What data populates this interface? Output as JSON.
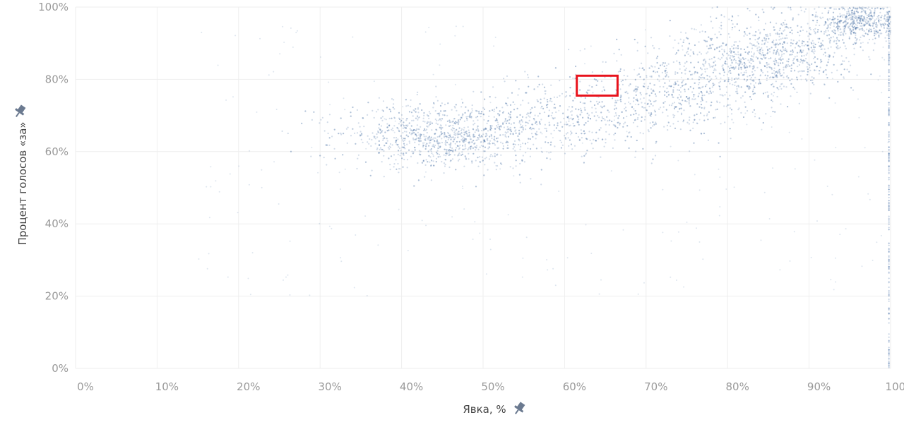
{
  "chart_data": {
    "type": "scatter",
    "title": "",
    "xlabel": "Явка, %",
    "ylabel": "Процент голосов «за»",
    "xlim": [
      0,
      100
    ],
    "ylim": [
      0,
      100
    ],
    "x_ticks": [
      "0%",
      "10%",
      "20%",
      "30%",
      "40%",
      "50%",
      "60%",
      "70%",
      "80%",
      "90%",
      "100%"
    ],
    "y_ticks": [
      "0%",
      "20%",
      "40%",
      "60%",
      "80%",
      "100%"
    ],
    "grid": true,
    "legend": "none",
    "point_color": "#4a74a8",
    "highlight_color": "#e8121c",
    "highlight_region": {
      "x": [
        61.5,
        66.5
      ],
      "y": [
        75.5,
        81
      ]
    },
    "pin_icon": "pin-icon",
    "clusters": [
      {
        "x": 45,
        "y": 64,
        "sx": 6.5,
        "sy": 4.5,
        "weight": 0.3
      },
      {
        "x": 60,
        "y": 70,
        "sx": 6,
        "sy": 5,
        "weight": 0.12
      },
      {
        "x": 72,
        "y": 76,
        "sx": 4.5,
        "sy": 6,
        "weight": 0.12
      },
      {
        "x": 81,
        "y": 83,
        "sx": 4,
        "sy": 6,
        "weight": 0.16
      },
      {
        "x": 88,
        "y": 88,
        "sx": 4,
        "sy": 5,
        "weight": 0.14
      },
      {
        "x": 96,
        "y": 96,
        "sx": 2.5,
        "sy": 2.5,
        "weight": 0.16
      }
    ]
  }
}
